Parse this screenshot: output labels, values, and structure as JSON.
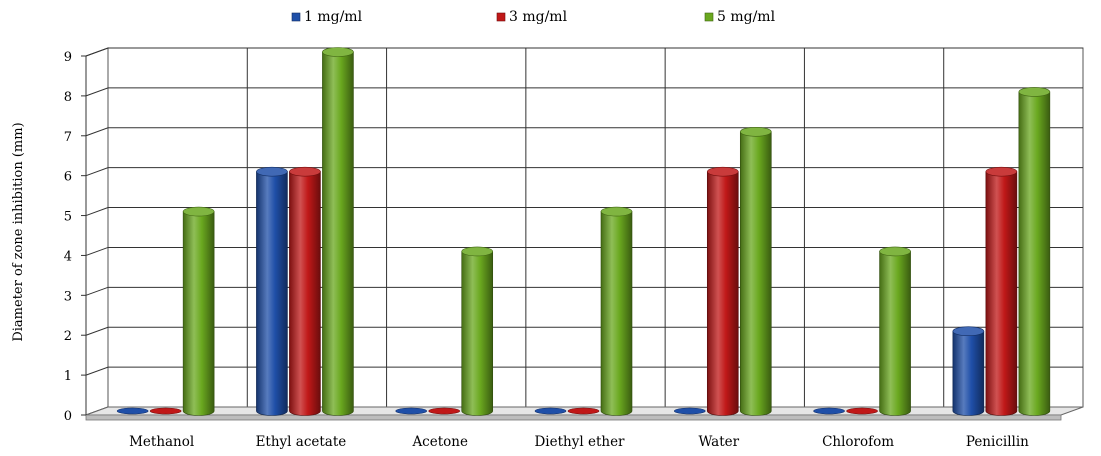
{
  "chart_data": {
    "type": "bar",
    "title": "",
    "xlabel": "",
    "ylabel": "Diameter of zone inhibition (mm)",
    "ylim": [
      0,
      9
    ],
    "yticks": [
      "0",
      "1",
      "2",
      "3",
      "4",
      "5",
      "6",
      "7",
      "8",
      "9"
    ],
    "categories": [
      "Methanol",
      "Ethyl acetate",
      "Acetone",
      "Diethyl ether",
      "Water",
      "Chlorofom",
      "Penicillin"
    ],
    "series": [
      {
        "name": "1 mg/ml",
        "color": "#1f4fa8",
        "values": [
          0,
          6,
          0,
          0,
          0,
          0,
          2
        ]
      },
      {
        "name": "3 mg/ml",
        "color": "#c01818",
        "values": [
          0,
          6,
          0,
          0,
          6,
          0,
          6
        ]
      },
      {
        "name": "5 mg/ml",
        "color": "#6aa81f",
        "values": [
          5,
          9,
          4,
          5,
          7,
          4,
          8
        ]
      }
    ],
    "legend_position": "top-center",
    "grid": true,
    "style": "3d-cylinder"
  }
}
